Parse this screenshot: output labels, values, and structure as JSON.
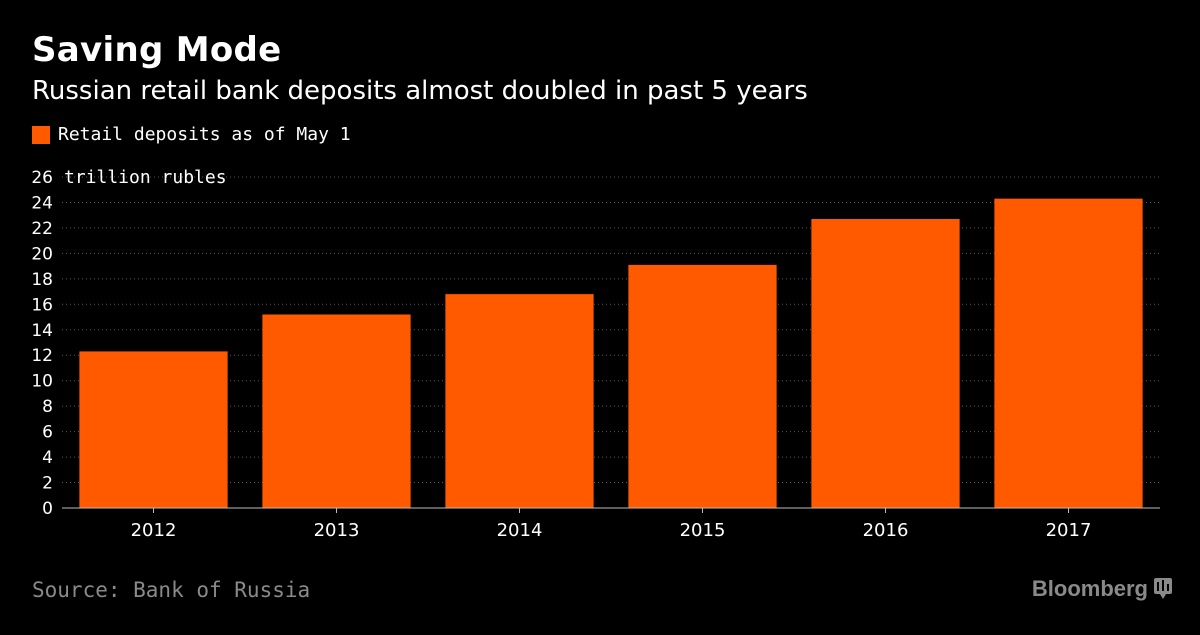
{
  "header": {
    "title": "Saving Mode",
    "subtitle": "Russian retail bank deposits almost doubled in past 5 years"
  },
  "footer": {
    "source": "Source: Bank of Russia",
    "brand": "Bloomberg"
  },
  "colors": {
    "bar": "#ff5a00",
    "background": "#000000",
    "grid": "#5a5a5a",
    "muted_text": "#8a8a8a"
  },
  "chart_data": {
    "type": "bar",
    "title": "Saving Mode",
    "subtitle": "Russian retail bank deposits almost doubled in past 5 years",
    "categories": [
      "2012",
      "2013",
      "2014",
      "2015",
      "2016",
      "2017"
    ],
    "series": [
      {
        "name": "Retail deposits as of May 1",
        "values": [
          12.3,
          15.2,
          16.8,
          19.1,
          22.7,
          24.3
        ]
      }
    ],
    "ylabel": "trillion rubles",
    "ylim": [
      0,
      26
    ],
    "yticks": [
      0,
      2,
      4,
      6,
      8,
      10,
      12,
      14,
      16,
      18,
      20,
      22,
      24,
      26
    ],
    "grid": true,
    "legend_position": "top-left"
  }
}
